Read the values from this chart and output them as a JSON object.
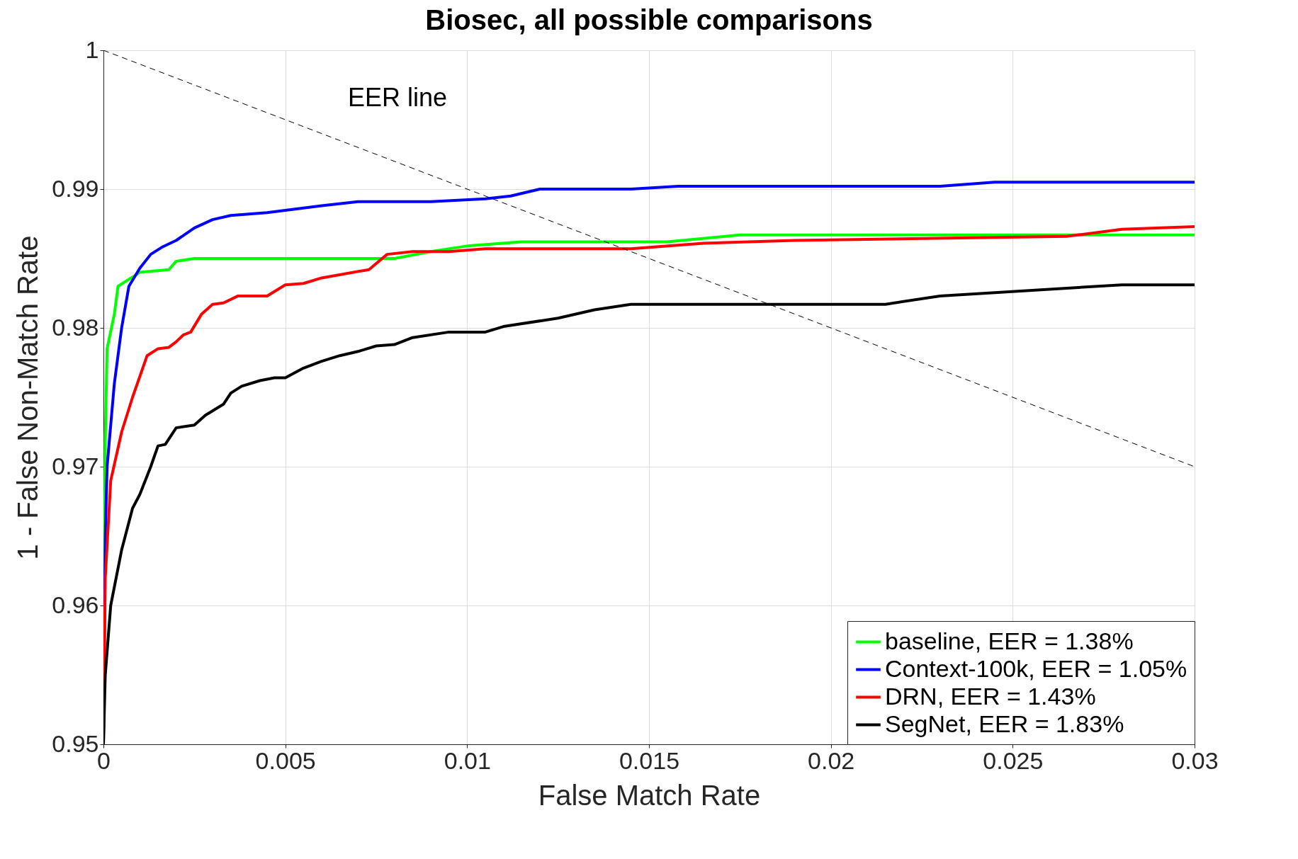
{
  "chart_data": {
    "type": "line",
    "title": "Biosec, all possible comparisons",
    "xlabel": "False Match Rate",
    "ylabel": "1 - False Non-Match Rate",
    "xlim": [
      0,
      0.03
    ],
    "ylim": [
      0.95,
      1
    ],
    "xticks": [
      0,
      0.005,
      0.01,
      0.015,
      0.02,
      0.025,
      0.03
    ],
    "yticks": [
      0.95,
      0.96,
      0.97,
      0.98,
      0.99,
      1
    ],
    "grid": true,
    "legend": "bottom right",
    "line_style": "solid",
    "marker": "none",
    "annotations": [
      "EER line"
    ],
    "series": [
      {
        "name": "baseline, EER = 1.38%",
        "color": "#00ff00",
        "x": [
          0,
          5e-05,
          0.0001,
          0.0003,
          0.0004,
          0.001,
          0.0018,
          0.002,
          0.0025,
          0.008,
          0.009,
          0.01,
          0.0115,
          0.0155,
          0.0175,
          0.03
        ],
        "values": [
          0.95,
          0.972,
          0.9785,
          0.981,
          0.983,
          0.984,
          0.9842,
          0.9848,
          0.985,
          0.985,
          0.9855,
          0.9859,
          0.9862,
          0.9862,
          0.9867,
          0.9867
        ]
      },
      {
        "name": "Context-100k, EER = 1.05%",
        "color": "#0000ff",
        "x": [
          0,
          5e-05,
          0.0001,
          0.0003,
          0.0005,
          0.0007,
          0.001,
          0.0013,
          0.0016,
          0.002,
          0.0025,
          0.003,
          0.0035,
          0.0045,
          0.006,
          0.007,
          0.009,
          0.0105,
          0.0112,
          0.012,
          0.0145,
          0.0158,
          0.023,
          0.0245,
          0.03
        ],
        "values": [
          0.95,
          0.965,
          0.97,
          0.976,
          0.98,
          0.983,
          0.9843,
          0.9853,
          0.9858,
          0.9863,
          0.9872,
          0.9878,
          0.9881,
          0.9883,
          0.9888,
          0.9891,
          0.9891,
          0.9893,
          0.9895,
          0.99,
          0.99,
          0.9902,
          0.9902,
          0.9905,
          0.9905
        ]
      },
      {
        "name": "DRN, EER = 1.43%",
        "color": "#ff0000",
        "x": [
          0,
          5e-05,
          0.0002,
          0.0005,
          0.0008,
          0.001,
          0.0012,
          0.0015,
          0.0018,
          0.002,
          0.0022,
          0.0024,
          0.0027,
          0.003,
          0.0033,
          0.0037,
          0.0045,
          0.005,
          0.0055,
          0.006,
          0.0073,
          0.0078,
          0.0085,
          0.0095,
          0.0105,
          0.0145,
          0.0165,
          0.019,
          0.0265,
          0.028,
          0.03
        ],
        "values": [
          0.95,
          0.962,
          0.969,
          0.9725,
          0.975,
          0.9765,
          0.978,
          0.9785,
          0.9786,
          0.979,
          0.9795,
          0.9797,
          0.981,
          0.9817,
          0.9818,
          0.9823,
          0.9823,
          0.9831,
          0.9832,
          0.9836,
          0.9842,
          0.9853,
          0.9855,
          0.9855,
          0.9857,
          0.9857,
          0.9861,
          0.9863,
          0.9866,
          0.9871,
          0.9873
        ]
      },
      {
        "name": "SegNet, EER = 1.83%",
        "color": "#000000",
        "x": [
          0,
          5e-05,
          0.0002,
          0.0005,
          0.0008,
          0.001,
          0.0013,
          0.0015,
          0.0017,
          0.002,
          0.0025,
          0.0028,
          0.0033,
          0.0035,
          0.0038,
          0.0043,
          0.0047,
          0.005,
          0.0055,
          0.006,
          0.0065,
          0.007,
          0.0075,
          0.008,
          0.0085,
          0.0095,
          0.0105,
          0.011,
          0.0125,
          0.0135,
          0.0145,
          0.0215,
          0.023,
          0.028,
          0.03
        ],
        "values": [
          0.95,
          0.955,
          0.96,
          0.964,
          0.967,
          0.968,
          0.97,
          0.9715,
          0.9716,
          0.9728,
          0.973,
          0.9737,
          0.9745,
          0.9753,
          0.9758,
          0.9762,
          0.9764,
          0.9764,
          0.9771,
          0.9776,
          0.978,
          0.9783,
          0.9787,
          0.9788,
          0.9793,
          0.9797,
          0.9797,
          0.9801,
          0.9807,
          0.9813,
          0.9817,
          0.9817,
          0.9823,
          0.9831,
          0.9831
        ]
      },
      {
        "type": "line",
        "line_style": "dashed",
        "color": "#000000",
        "x": [
          0,
          0.03
        ],
        "values": [
          1,
          0.97
        ]
      }
    ]
  }
}
